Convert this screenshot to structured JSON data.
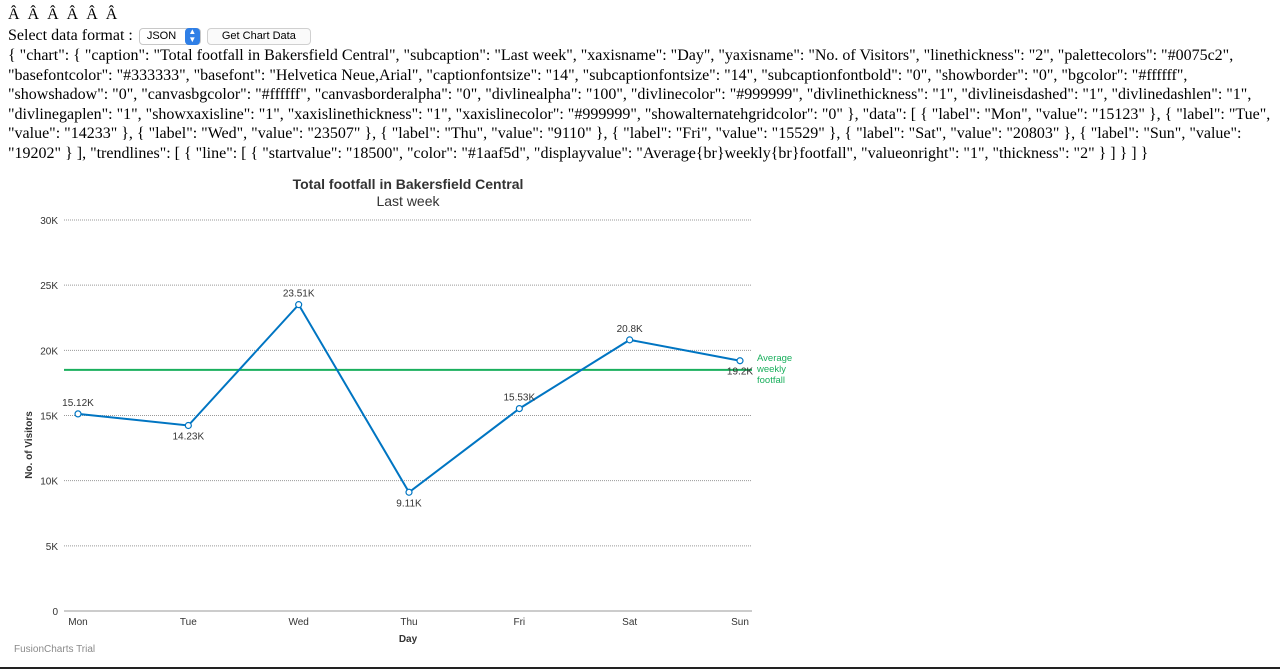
{
  "header_garbled": "Â Â  Â Â  Â Â",
  "controls": {
    "label": "Select data format :",
    "format_selected": "JSON",
    "button_label": "Get Chart Data"
  },
  "json_output": "{ \"chart\": { \"caption\": \"Total footfall in Bakersfield Central\", \"subcaption\": \"Last week\", \"xaxisname\": \"Day\", \"yaxisname\": \"No. of Visitors\", \"linethickness\": \"2\", \"palettecolors\": \"#0075c2\", \"basefontcolor\": \"#333333\", \"basefont\": \"Helvetica Neue,Arial\", \"captionfontsize\": \"14\", \"subcaptionfontsize\": \"14\", \"subcaptionfontbold\": \"0\", \"showborder\": \"0\", \"bgcolor\": \"#ffffff\", \"showshadow\": \"0\", \"canvasbgcolor\": \"#ffffff\", \"canvasborderalpha\": \"0\", \"divlinealpha\": \"100\", \"divlinecolor\": \"#999999\", \"divlinethickness\": \"1\", \"divlineisdashed\": \"1\", \"divlinedashlen\": \"1\", \"divlinegaplen\": \"1\", \"showxaxisline\": \"1\", \"xaxislinethickness\": \"1\", \"xaxislinecolor\": \"#999999\", \"showalternatehgridcolor\": \"0\" }, \"data\": [ { \"label\": \"Mon\", \"value\": \"15123\" }, { \"label\": \"Tue\", \"value\": \"14233\" }, { \"label\": \"Wed\", \"value\": \"23507\" }, { \"label\": \"Thu\", \"value\": \"9110\" }, { \"label\": \"Fri\", \"value\": \"15529\" }, { \"label\": \"Sat\", \"value\": \"20803\" }, { \"label\": \"Sun\", \"value\": \"19202\" } ], \"trendlines\": [ { \"line\": [ { \"startvalue\": \"18500\", \"color\": \"#1aaf5d\", \"displayvalue\": \"Average{br}weekly{br}footfall\", \"valueonright\": \"1\", \"thickness\": \"2\" } ] } ] }",
  "watermark": "FusionCharts Trial",
  "chart_data": {
    "type": "line",
    "title": "Total footfall in Bakersfield Central",
    "subtitle": "Last week",
    "xlabel": "Day",
    "ylabel": "No. of Visitors",
    "categories": [
      "Mon",
      "Tue",
      "Wed",
      "Thu",
      "Fri",
      "Sat",
      "Sun"
    ],
    "values": [
      15123,
      14233,
      23507,
      9110,
      15529,
      20803,
      19202
    ],
    "data_labels": [
      "15.12K",
      "14.23K",
      "23.51K",
      "9.11K",
      "15.53K",
      "20.8K",
      "19.2K"
    ],
    "ylim": [
      0,
      30000
    ],
    "yticks": [
      0,
      5000,
      10000,
      15000,
      20000,
      25000,
      30000
    ],
    "ytick_labels": [
      "0",
      "5K",
      "10K",
      "15K",
      "20K",
      "25K",
      "30K"
    ],
    "grid": true,
    "line_color": "#0075c2",
    "trendline": {
      "value": 18500,
      "color": "#1aaf5d",
      "label_lines": [
        "Average",
        "weekly",
        "footfall"
      ]
    }
  }
}
